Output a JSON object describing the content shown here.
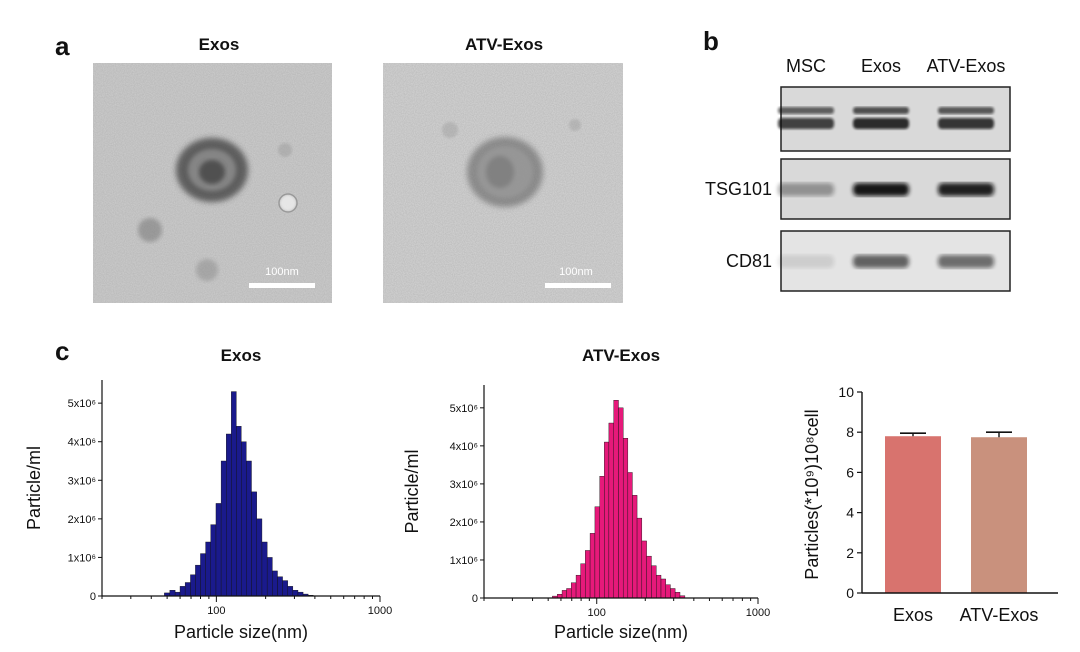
{
  "panels": {
    "a": {
      "letter": "a",
      "images": [
        {
          "title": "Exos",
          "scale_label": "100nm"
        },
        {
          "title": "ATV-Exos",
          "scale_label": "100nm"
        }
      ]
    },
    "b": {
      "letter": "b",
      "lanes": [
        "MSC",
        "Exos",
        "ATV-Exos"
      ],
      "rows": [
        {
          "label": "",
          "intensity": [
            0.75,
            0.85,
            0.8
          ],
          "double_band": true
        },
        {
          "label": "TSG101",
          "intensity": [
            0.35,
            0.95,
            0.9
          ],
          "double_band": false
        },
        {
          "label": "CD81",
          "intensity": [
            0.1,
            0.6,
            0.55
          ],
          "double_band": false
        }
      ]
    },
    "c": {
      "letter": "c"
    }
  },
  "chart_data": [
    {
      "type": "bar",
      "title": "Exos",
      "xlabel": "Particle size(nm)",
      "ylabel": "Particle/ml",
      "x_scale": "log",
      "xlim": [
        20,
        1000
      ],
      "x_ticks": [
        "100",
        "1000"
      ],
      "y_ticks": [
        "0",
        "1x10⁶",
        "2x10⁶",
        "3x10⁶",
        "4x10⁶",
        "5x10⁶"
      ],
      "ylim": [
        0,
        5600000
      ],
      "color": "#1a1a8c",
      "x": [
        50,
        54,
        58,
        62,
        67,
        72,
        77,
        83,
        89,
        96,
        103,
        111,
        119,
        128,
        137,
        147,
        158,
        170,
        183,
        197,
        212,
        228,
        245,
        263,
        283,
        304,
        327,
        351,
        377
      ],
      "values": [
        80000,
        150000,
        100000,
        250000,
        350000,
        550000,
        800000,
        1100000,
        1400000,
        1850000,
        2400000,
        3500000,
        4200000,
        5300000,
        4400000,
        4000000,
        3500000,
        2700000,
        2000000,
        1400000,
        1000000,
        650000,
        500000,
        400000,
        250000,
        150000,
        100000,
        50000,
        20000
      ]
    },
    {
      "type": "bar",
      "title": "ATV-Exos",
      "xlabel": "Particle size(nm)",
      "ylabel": "Particle/ml",
      "x_scale": "log",
      "xlim": [
        20,
        1000
      ],
      "x_ticks": [
        "100",
        "1000"
      ],
      "y_ticks": [
        "0",
        "1x10⁶",
        "2x10⁶",
        "3x10⁶",
        "4x10⁶",
        "5x10⁶"
      ],
      "ylim": [
        0,
        5600000
      ],
      "color": "#e6197a",
      "x": [
        55,
        59,
        63,
        67,
        72,
        77,
        82,
        88,
        94,
        101,
        108,
        115,
        123,
        132,
        141,
        151,
        161,
        172,
        184,
        197,
        211,
        226,
        242,
        259,
        277,
        296,
        317,
        340
      ],
      "values": [
        50000,
        100000,
        200000,
        250000,
        400000,
        600000,
        900000,
        1250000,
        1700000,
        2400000,
        3200000,
        4100000,
        4600000,
        5200000,
        5000000,
        4200000,
        3300000,
        2700000,
        2100000,
        1500000,
        1100000,
        850000,
        600000,
        500000,
        350000,
        250000,
        150000,
        60000
      ]
    },
    {
      "type": "bar",
      "title": "",
      "xlabel": "",
      "ylabel": "Particles(*10⁹)10⁸cell",
      "categories": [
        "Exos",
        "ATV-Exos"
      ],
      "values": [
        7.8,
        7.75
      ],
      "errors": [
        0.15,
        0.25
      ],
      "ylim": [
        0,
        10
      ],
      "y_ticks": [
        0,
        2,
        4,
        6,
        8,
        10
      ],
      "colors": [
        "#d8736e",
        "#c9917d"
      ]
    }
  ]
}
